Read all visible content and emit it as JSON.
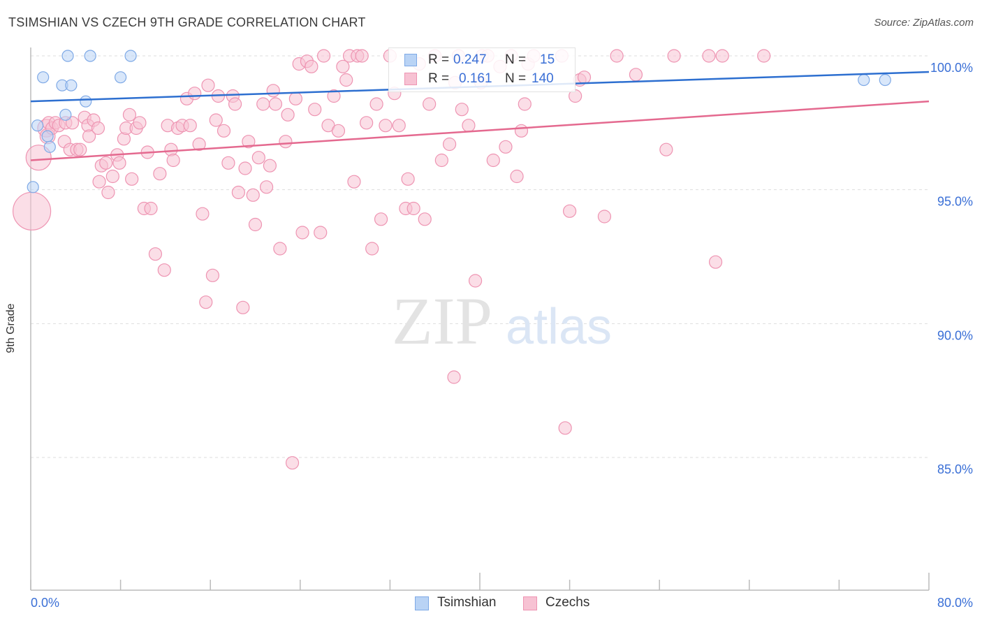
{
  "title": "TSIMSHIAN VS CZECH 9TH GRADE CORRELATION CHART",
  "source": "Source: ZipAtlas.com",
  "watermark": {
    "zip": "ZIP",
    "atlas": "atlas"
  },
  "legend": {
    "rows": [
      {
        "r_label": "R =",
        "r_value": "0.247",
        "n_label": "N =",
        "n_value": "15"
      },
      {
        "r_label": "R =",
        "r_value": "0.161",
        "n_label": "N =",
        "n_value": "140"
      }
    ]
  },
  "bottom_legend": [
    "Tsimshian",
    "Czechs"
  ],
  "colors": {
    "tsimshian_fill": "#b9d3f5",
    "tsimshian_stroke": "#7ea9e6",
    "tsimshian_line": "#2d6fd0",
    "czech_fill": "#f7c2d3",
    "czech_stroke": "#ee94b2",
    "czech_line": "#e4698f",
    "tick_label": "#3a6fd6",
    "grid": "#dddddd"
  },
  "chart_data": {
    "type": "scatter",
    "title": "TSIMSHIAN VS CZECH 9TH GRADE CORRELATION CHART",
    "xlabel": "",
    "ylabel": "9th Grade",
    "xlim": [
      0,
      80
    ],
    "ylim": [
      80.5,
      100.5
    ],
    "x_tick_labels": [
      "0.0%",
      "80.0%"
    ],
    "y_ticks": [
      100,
      95,
      90,
      85
    ],
    "y_tick_labels": [
      "100.0%",
      "95.0%",
      "90.0%",
      "85.0%"
    ],
    "legend_position": "bottom-center",
    "series": [
      {
        "name": "Tsimshian",
        "R": 0.247,
        "N": 15,
        "trend": {
          "x": [
            0,
            80
          ],
          "y": [
            98.3,
            99.4
          ]
        },
        "points": [
          [
            0.2,
            95.1,
            1
          ],
          [
            0.6,
            97.4,
            1
          ],
          [
            1.1,
            99.2,
            1
          ],
          [
            1.5,
            97.0,
            1
          ],
          [
            1.7,
            96.6,
            1
          ],
          [
            2.8,
            98.9,
            1
          ],
          [
            3.1,
            97.8,
            1
          ],
          [
            3.3,
            100.0,
            1
          ],
          [
            3.6,
            98.9,
            1
          ],
          [
            4.9,
            98.3,
            1
          ],
          [
            5.3,
            100.0,
            1
          ],
          [
            8.0,
            99.2,
            1
          ],
          [
            8.9,
            100.0,
            1
          ],
          [
            74.2,
            99.1,
            1
          ],
          [
            76.1,
            99.1,
            1
          ]
        ]
      },
      {
        "name": "Czechs",
        "R": 0.161,
        "N": 140,
        "trend": {
          "x": [
            0,
            80
          ],
          "y": [
            96.1,
            98.3
          ]
        },
        "points": [
          [
            0.1,
            94.2,
            3
          ],
          [
            0.7,
            96.2,
            2
          ],
          [
            1.4,
            97.3,
            1.4
          ],
          [
            1.5,
            97.0,
            1.2
          ],
          [
            1.6,
            97.5,
            1
          ],
          [
            1.9,
            97.3,
            1
          ],
          [
            2.2,
            97.5,
            1
          ],
          [
            2.5,
            97.4,
            1
          ],
          [
            3.1,
            97.5,
            1
          ],
          [
            3.0,
            96.8,
            1
          ],
          [
            3.5,
            96.5,
            1
          ],
          [
            3.7,
            97.5,
            1
          ],
          [
            4.1,
            96.5,
            1
          ],
          [
            4.4,
            96.5,
            1
          ],
          [
            4.8,
            97.7,
            1
          ],
          [
            5.1,
            97.4,
            1
          ],
          [
            5.2,
            97.0,
            1
          ],
          [
            5.6,
            97.6,
            1
          ],
          [
            6.0,
            97.3,
            1
          ],
          [
            6.1,
            95.3,
            1
          ],
          [
            6.3,
            95.9,
            1
          ],
          [
            6.7,
            96.0,
            1
          ],
          [
            6.9,
            94.9,
            1
          ],
          [
            7.3,
            95.5,
            1
          ],
          [
            7.7,
            96.3,
            1
          ],
          [
            7.9,
            96.0,
            1
          ],
          [
            8.3,
            96.9,
            1
          ],
          [
            8.5,
            97.3,
            1
          ],
          [
            8.8,
            97.8,
            1
          ],
          [
            9.0,
            95.4,
            1
          ],
          [
            9.4,
            97.3,
            1
          ],
          [
            9.7,
            97.5,
            1
          ],
          [
            10.1,
            94.3,
            1
          ],
          [
            10.4,
            96.4,
            1
          ],
          [
            10.7,
            94.3,
            1
          ],
          [
            11.1,
            92.6,
            1
          ],
          [
            11.5,
            95.6,
            1
          ],
          [
            11.9,
            92.0,
            1
          ],
          [
            12.2,
            97.4,
            1
          ],
          [
            12.5,
            96.5,
            1
          ],
          [
            12.7,
            96.1,
            1
          ],
          [
            13.1,
            97.3,
            1
          ],
          [
            13.5,
            97.4,
            1
          ],
          [
            13.9,
            98.4,
            1
          ],
          [
            14.2,
            97.4,
            1
          ],
          [
            14.6,
            98.6,
            1
          ],
          [
            15.0,
            96.7,
            1
          ],
          [
            15.3,
            94.1,
            1
          ],
          [
            15.6,
            90.8,
            1
          ],
          [
            15.8,
            98.9,
            1
          ],
          [
            16.2,
            91.8,
            1
          ],
          [
            16.5,
            97.6,
            1
          ],
          [
            16.7,
            98.5,
            1
          ],
          [
            17.2,
            97.2,
            1
          ],
          [
            17.6,
            96.0,
            1
          ],
          [
            18.0,
            98.5,
            1
          ],
          [
            18.2,
            98.2,
            1
          ],
          [
            18.5,
            94.9,
            1
          ],
          [
            18.9,
            90.6,
            1
          ],
          [
            19.1,
            95.8,
            1
          ],
          [
            19.4,
            96.8,
            1
          ],
          [
            19.8,
            94.8,
            1
          ],
          [
            20.0,
            93.7,
            1
          ],
          [
            20.3,
            96.2,
            1
          ],
          [
            20.7,
            98.2,
            1
          ],
          [
            21.0,
            95.1,
            1
          ],
          [
            21.3,
            95.9,
            1
          ],
          [
            21.6,
            98.7,
            1
          ],
          [
            21.8,
            98.2,
            1
          ],
          [
            22.2,
            92.8,
            1
          ],
          [
            22.7,
            96.8,
            1
          ],
          [
            22.9,
            97.8,
            1
          ],
          [
            23.3,
            84.8,
            1
          ],
          [
            23.6,
            98.4,
            1
          ],
          [
            23.9,
            99.7,
            1
          ],
          [
            24.2,
            93.4,
            1
          ],
          [
            24.6,
            99.8,
            1
          ],
          [
            25.0,
            99.6,
            1
          ],
          [
            25.3,
            98.0,
            1
          ],
          [
            25.8,
            93.4,
            1
          ],
          [
            26.1,
            100.0,
            1
          ],
          [
            26.5,
            97.4,
            1
          ],
          [
            27.0,
            98.5,
            1
          ],
          [
            27.4,
            97.2,
            1
          ],
          [
            27.8,
            99.6,
            1
          ],
          [
            28.1,
            99.1,
            1
          ],
          [
            28.4,
            100.0,
            1
          ],
          [
            28.8,
            95.3,
            1
          ],
          [
            29.1,
            100.0,
            1
          ],
          [
            29.5,
            100.0,
            1
          ],
          [
            29.9,
            97.5,
            1
          ],
          [
            30.4,
            92.8,
            1
          ],
          [
            30.8,
            98.2,
            1
          ],
          [
            31.2,
            93.9,
            1
          ],
          [
            31.6,
            97.4,
            1
          ],
          [
            32.0,
            100.0,
            1
          ],
          [
            32.4,
            98.6,
            1
          ],
          [
            32.8,
            97.4,
            1
          ],
          [
            33.4,
            94.3,
            1
          ],
          [
            33.6,
            95.4,
            1
          ],
          [
            34.1,
            94.3,
            1
          ],
          [
            34.6,
            99.7,
            1
          ],
          [
            35.1,
            93.9,
            1
          ],
          [
            35.5,
            98.2,
            1
          ],
          [
            36.0,
            100.0,
            1
          ],
          [
            36.6,
            96.1,
            1
          ],
          [
            37.3,
            96.7,
            1
          ],
          [
            37.8,
            99.0,
            1
          ],
          [
            38.4,
            98.0,
            1
          ],
          [
            39.0,
            97.4,
            1
          ],
          [
            39.6,
            91.6,
            1
          ],
          [
            40.2,
            100.0,
            1
          ],
          [
            40.7,
            100.0,
            1
          ],
          [
            41.2,
            96.1,
            1
          ],
          [
            41.8,
            99.6,
            1
          ],
          [
            42.3,
            96.6,
            1
          ],
          [
            42.8,
            100.0,
            1
          ],
          [
            43.3,
            95.5,
            1
          ],
          [
            43.7,
            97.2,
            1
          ],
          [
            44.0,
            98.2,
            1
          ],
          [
            44.3,
            99.7,
            1
          ],
          [
            44.8,
            100.0,
            1
          ],
          [
            47.3,
            100.0,
            1
          ],
          [
            48.0,
            94.2,
            1
          ],
          [
            48.5,
            98.5,
            1
          ],
          [
            48.9,
            99.1,
            1
          ],
          [
            49.3,
            99.2,
            1
          ],
          [
            51.1,
            94.0,
            1
          ],
          [
            52.2,
            100.0,
            1
          ],
          [
            53.9,
            99.3,
            1
          ],
          [
            56.6,
            96.5,
            1
          ],
          [
            57.3,
            100.0,
            1
          ],
          [
            60.4,
            100.0,
            1
          ],
          [
            61.0,
            92.3,
            1
          ],
          [
            61.6,
            100.0,
            1
          ],
          [
            65.3,
            100.0,
            1
          ],
          [
            37.7,
            88.0,
            1
          ],
          [
            47.6,
            86.1,
            1
          ],
          [
            38.1,
            100.0,
            1
          ],
          [
            40.1,
            99.0,
            1
          ]
        ]
      }
    ]
  }
}
